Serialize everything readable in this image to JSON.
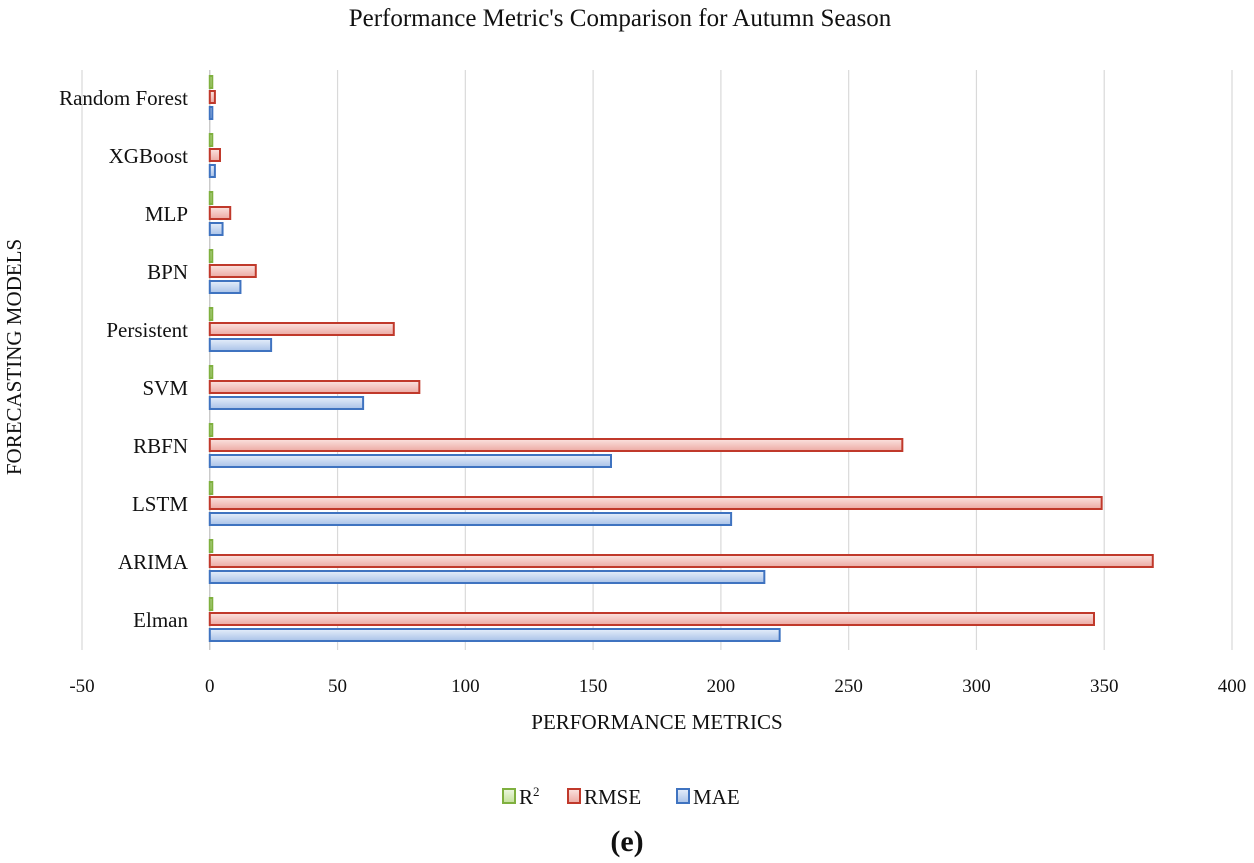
{
  "chart_data": {
    "type": "bar",
    "orientation": "horizontal",
    "title": "Performance Metric's  Comparison for Autumn Season",
    "xlabel": "PERFORMANCE METRICS",
    "ylabel": "FORECASTING MODELS",
    "xlim": [
      -50,
      400
    ],
    "xticks": [
      -50,
      0,
      50,
      100,
      150,
      200,
      250,
      300,
      350,
      400
    ],
    "grid": "vertical",
    "legend_position": "bottom",
    "categories": [
      "Random Forest",
      "XGBoost",
      "MLP",
      "BPN",
      "Persistent",
      "SVM",
      "RBFN",
      "LSTM",
      "ARIMA",
      "Elman"
    ],
    "series": [
      {
        "name": "R",
        "superscript": "2",
        "color": "#7fb03f",
        "fill": "#dff0c8",
        "values": [
          0.95,
          0.93,
          0.9,
          0.85,
          0.8,
          0.75,
          0.6,
          0.4,
          0.35,
          0.3
        ]
      },
      {
        "name": "RMSE",
        "color": "#c0392b",
        "fill": "#f5c9c4",
        "values": [
          2,
          4,
          8,
          18,
          72,
          82,
          271,
          349,
          369,
          346
        ]
      },
      {
        "name": "MAE",
        "color": "#3f73c0",
        "fill": "#c9daf2",
        "values": [
          1,
          2,
          5,
          12,
          24,
          60,
          157,
          204,
          217,
          223
        ]
      }
    ],
    "caption": "(e)"
  }
}
